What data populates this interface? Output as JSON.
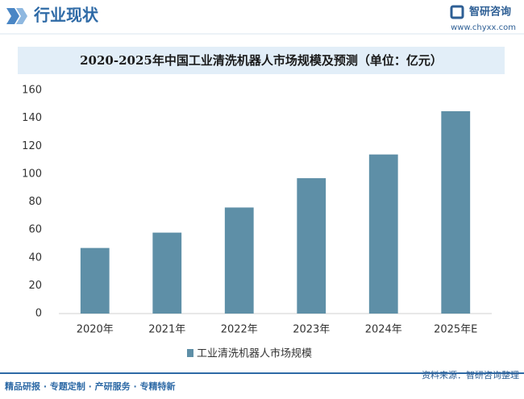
{
  "header": {
    "title": "行业现状",
    "logo": "智研咨询",
    "url": "www.chyxx.com"
  },
  "chart_data": {
    "type": "bar",
    "title": "2020-2025年中国工业清洗机器人市场规模及预测（单位：亿元）",
    "categories": [
      "2020年",
      "2021年",
      "2022年",
      "2023年",
      "2024年",
      "2025年E"
    ],
    "series": [
      {
        "name": "工业清洗机器人市场规模",
        "color": "#5e8fa7",
        "values": [
          47,
          58,
          76,
          97,
          114,
          145
        ]
      }
    ],
    "ylim": [
      0,
      160
    ],
    "yticks": [
      0,
      20,
      40,
      60,
      80,
      100,
      120,
      140,
      160
    ],
    "grid": false
  },
  "footer": {
    "left": "精品研报 · 专题定制 · 产研服务 · 专精特新",
    "source": "资料来源：智研咨询整理"
  }
}
